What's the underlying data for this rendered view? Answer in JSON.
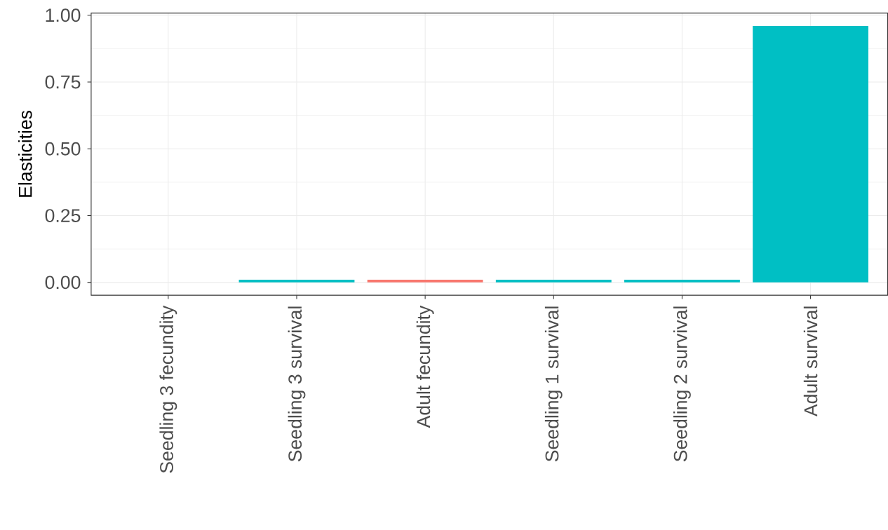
{
  "chart_data": {
    "type": "bar",
    "ylabel": "Elasticities",
    "categories": [
      "Seedling 3 fecundity",
      "Seedling 3 survival",
      "Adult fecundity",
      "Seedling 1 survival",
      "Seedling 2 survival",
      "Adult survival"
    ],
    "values": [
      0,
      0.01,
      0.01,
      0.01,
      0.01,
      0.96
    ],
    "colors": [
      "#00bfc4",
      "#00bfc4",
      "#f8766d",
      "#00bfc4",
      "#00bfc4",
      "#00bfc4"
    ],
    "ylim": [
      -0.048,
      1.008
    ],
    "yticks": [
      {
        "value": 0,
        "label": "0.00"
      },
      {
        "value": 0.25,
        "label": "0.25"
      },
      {
        "value": 0.5,
        "label": "0.50"
      },
      {
        "value": 0.75,
        "label": "0.75"
      },
      {
        "value": 1,
        "label": "1.00"
      }
    ],
    "grid": true
  }
}
